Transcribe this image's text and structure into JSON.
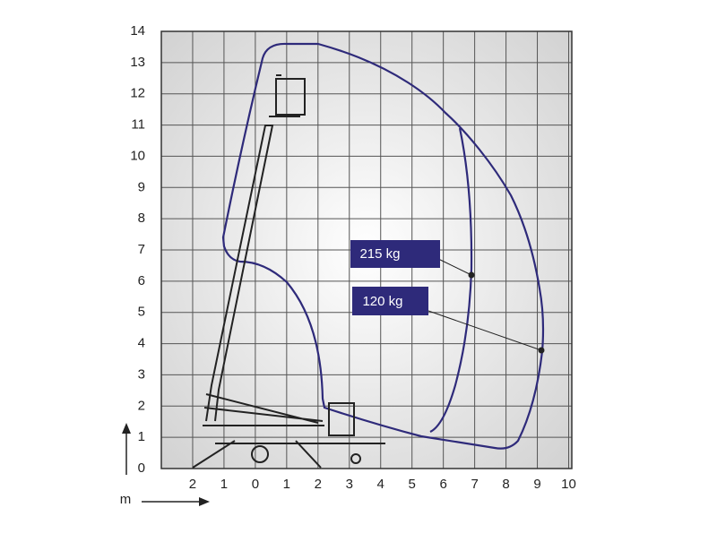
{
  "chart_data": {
    "type": "range-diagram",
    "xlim": [
      -3,
      10.1
    ],
    "ylim": [
      0,
      14
    ],
    "xticks": [
      {
        "value": -2,
        "label": "2"
      },
      {
        "value": -1,
        "label": "1"
      },
      0,
      1,
      2,
      3,
      4,
      5,
      6,
      7,
      8,
      9,
      10
    ],
    "yticks": [
      0,
      1,
      2,
      3,
      4,
      5,
      6,
      7,
      8,
      9,
      10,
      11,
      12,
      13,
      14
    ],
    "grid": true,
    "x_label": "m",
    "annotations": [
      "215 kg",
      "120 kg"
    ],
    "color": "#2e2a7a"
  }
}
